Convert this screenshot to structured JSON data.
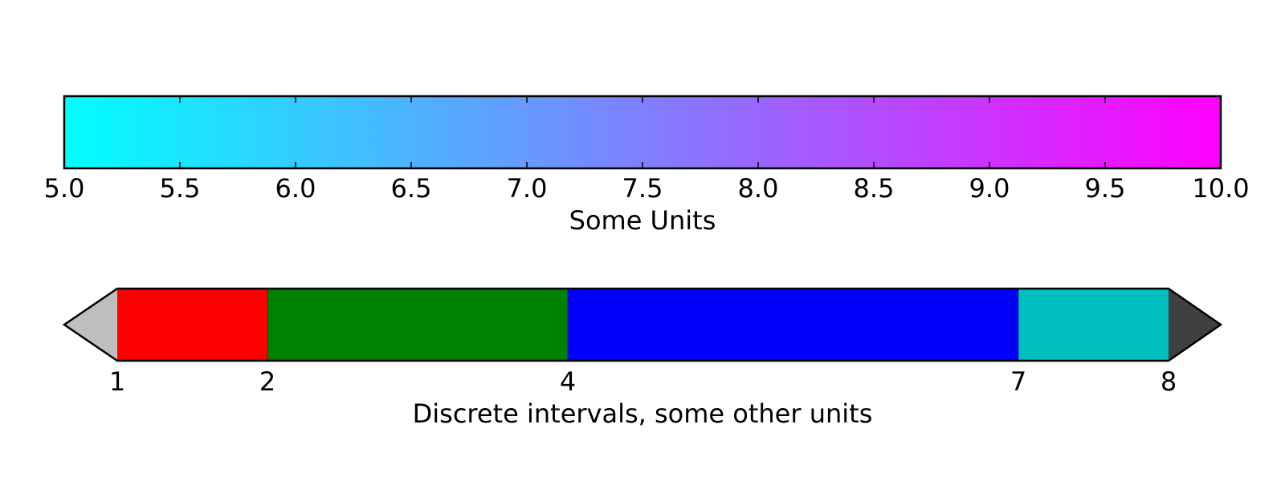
{
  "chart_data": [
    {
      "type": "colorbar",
      "orientation": "horizontal",
      "colormap": "cool",
      "colors": [
        "#00ffff",
        "#ff00ff"
      ],
      "range": [
        5.0,
        10.0
      ],
      "ticks": [
        5.0,
        5.5,
        6.0,
        6.5,
        7.0,
        7.5,
        8.0,
        8.5,
        9.0,
        9.5,
        10.0
      ],
      "tick_labels": [
        "5.0",
        "5.5",
        "6.0",
        "6.5",
        "7.0",
        "7.5",
        "8.0",
        "8.5",
        "9.0",
        "9.5",
        "10.0"
      ],
      "xlabel": "Some Units"
    },
    {
      "type": "colorbar",
      "orientation": "horizontal",
      "discrete": true,
      "boundaries": [
        1,
        2,
        4,
        7,
        8
      ],
      "tick_labels": [
        "1",
        "2",
        "4",
        "7",
        "8"
      ],
      "colors": [
        "#ff0000",
        "#008000",
        "#0000ff",
        "#00bfbf"
      ],
      "extend": "both",
      "under_color": "#bfbfbf",
      "over_color": "#404040",
      "xlabel": "Discrete intervals, some other units"
    }
  ]
}
